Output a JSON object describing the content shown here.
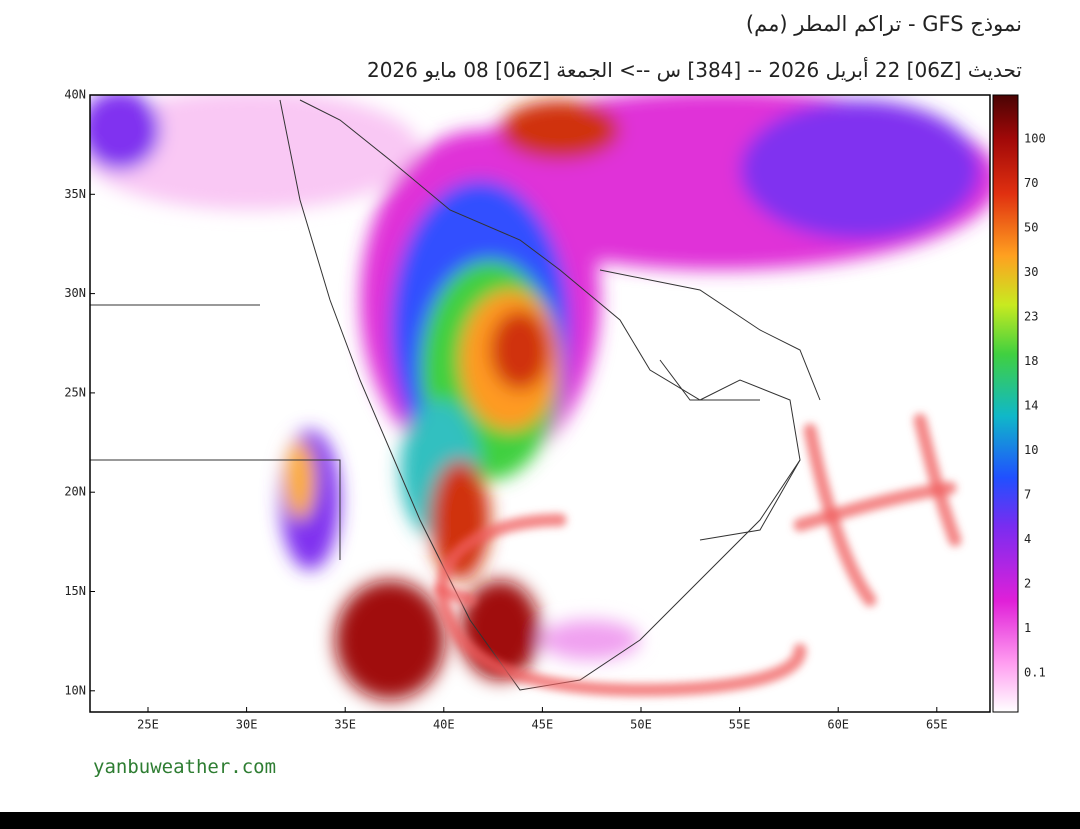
{
  "header": {
    "title": "نموذج GFS - تراكم المطر (مم)",
    "subtitle": "تحديث [06Z] 22 أبريل 2026 -- [384] س --> الجمعة [06Z] 08 مايو 2026"
  },
  "map": {
    "lat_labels": [
      "40N",
      "35N",
      "30N",
      "25N",
      "20N",
      "15N",
      "10N"
    ],
    "lon_labels": [
      "25E",
      "30E",
      "35E",
      "40E",
      "45E",
      "50E",
      "55E",
      "60E",
      "65E"
    ]
  },
  "colorbar": {
    "labels": [
      100,
      70,
      50,
      30,
      23,
      18,
      14,
      10,
      7,
      4,
      2,
      1,
      0.1
    ]
  },
  "footer": {
    "watermark": "yanbuweather.com"
  }
}
